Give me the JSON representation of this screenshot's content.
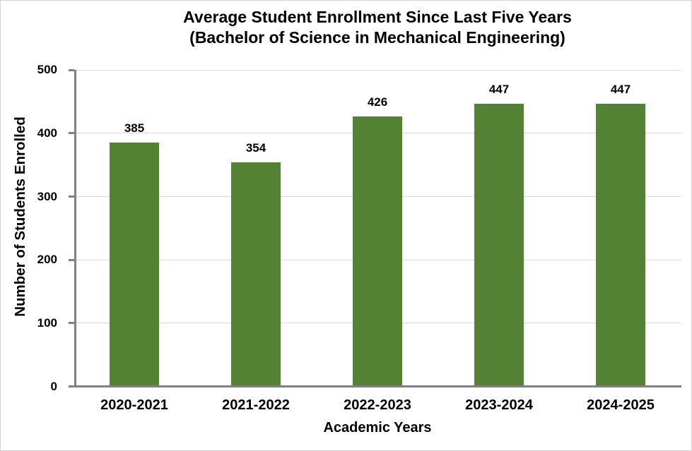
{
  "chart_data": {
    "type": "bar",
    "title": "Average Student Enrollment Since Last Five Years",
    "subtitle": "(Bachelor of Science in Mechanical Engineering)",
    "xlabel": "Academic Years",
    "ylabel": "Number of Students Enrolled",
    "categories": [
      "2020-2021",
      "2021-2022",
      "2022-2023",
      "2023-2024",
      "2024-2025"
    ],
    "values": [
      385,
      354,
      426,
      447,
      447
    ],
    "ylim": [
      0,
      500
    ],
    "yticks": [
      0,
      100,
      200,
      300,
      400,
      500
    ],
    "grid": true,
    "legend": false,
    "data_labels": true,
    "bar_color": "#548235",
    "axis_color": "#808080",
    "gridline_color": "#D9D9D9",
    "text_color": "#000000"
  }
}
